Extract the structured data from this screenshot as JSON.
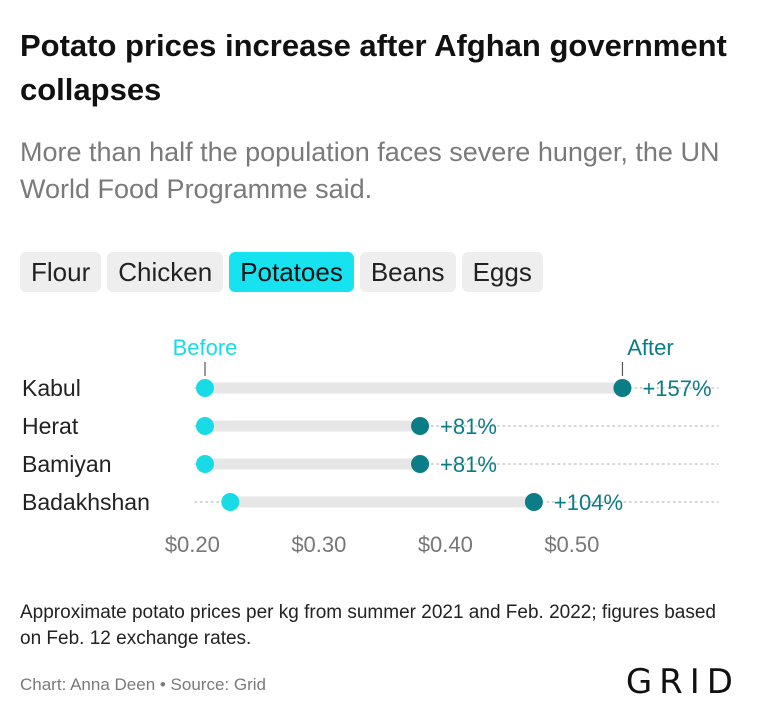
{
  "header": {
    "title": "Potato prices increase after Afghan government collapses",
    "subtitle": "More than half the population faces severe hunger, the UN World Food Programme said."
  },
  "tabs": [
    {
      "label": "Flour",
      "active": false
    },
    {
      "label": "Chicken",
      "active": false
    },
    {
      "label": "Potatoes",
      "active": true
    },
    {
      "label": "Beans",
      "active": false
    },
    {
      "label": "Eggs",
      "active": false
    }
  ],
  "chart_data": {
    "type": "dumbbell",
    "series": [
      {
        "name": "Before",
        "values": [
          0.21,
          0.21,
          0.21,
          0.23
        ]
      },
      {
        "name": "After",
        "values": [
          0.54,
          0.38,
          0.38,
          0.47
        ]
      }
    ],
    "categories": [
      "Kabul",
      "Herat",
      "Bamiyan",
      "Badakhshan"
    ],
    "change_labels": [
      "+157%",
      "+81%",
      "+81%",
      "+104%"
    ],
    "x_ticks": [
      0.2,
      0.3,
      0.4,
      0.5
    ],
    "x_tick_labels": [
      "$0.20",
      "$0.30",
      "$0.40",
      "$0.50"
    ],
    "xlim": [
      0.18,
      0.6
    ],
    "colors": {
      "before": "#19dbe6",
      "after": "#0b7d86",
      "track": "#e6e6e6",
      "grid": "#c8c8c8"
    }
  },
  "footer": {
    "note": "Approximate potato prices per kg from summer 2021 and Feb. 2022; figures based on Feb. 12 exchange rates.",
    "credit": "Chart: Anna Deen • Source: Grid",
    "logo": "GRID"
  }
}
